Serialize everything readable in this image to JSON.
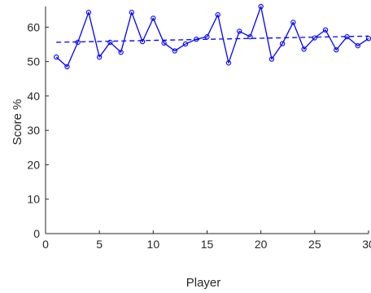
{
  "chart_data": {
    "type": "line",
    "title": "",
    "xlabel": "Player",
    "ylabel": "Score %",
    "xlim": [
      0,
      30
    ],
    "ylim": [
      0,
      66
    ],
    "x_ticks": [
      0,
      5,
      10,
      15,
      20,
      25,
      30
    ],
    "y_ticks": [
      0,
      10,
      20,
      30,
      40,
      50,
      60
    ],
    "grid": false,
    "legend": "none",
    "colors": {
      "series": "#0000ff",
      "axis": "#262626",
      "background": "#ffffff"
    },
    "series": [
      {
        "style": "solid-line-circle-markers",
        "x": [
          1,
          2,
          3,
          4,
          5,
          6,
          7,
          8,
          9,
          10,
          11,
          12,
          13,
          14,
          15,
          16,
          17,
          18,
          19,
          20,
          21,
          22,
          23,
          24,
          25,
          26,
          27,
          28,
          29,
          30
        ],
        "values": [
          51.3,
          48.5,
          55.6,
          64.3,
          51.3,
          55.6,
          52.7,
          64.3,
          55.8,
          62.6,
          55.4,
          53.1,
          55.1,
          56.5,
          57.2,
          63.6,
          49.6,
          58.8,
          57.2,
          66.0,
          50.7,
          55.2,
          61.4,
          53.6,
          56.9,
          59.2,
          53.4,
          57.2,
          54.6,
          56.7
        ]
      },
      {
        "style": "dashed-trend-line",
        "x": [
          1,
          30
        ],
        "values": [
          55.6,
          57.4
        ]
      }
    ]
  }
}
